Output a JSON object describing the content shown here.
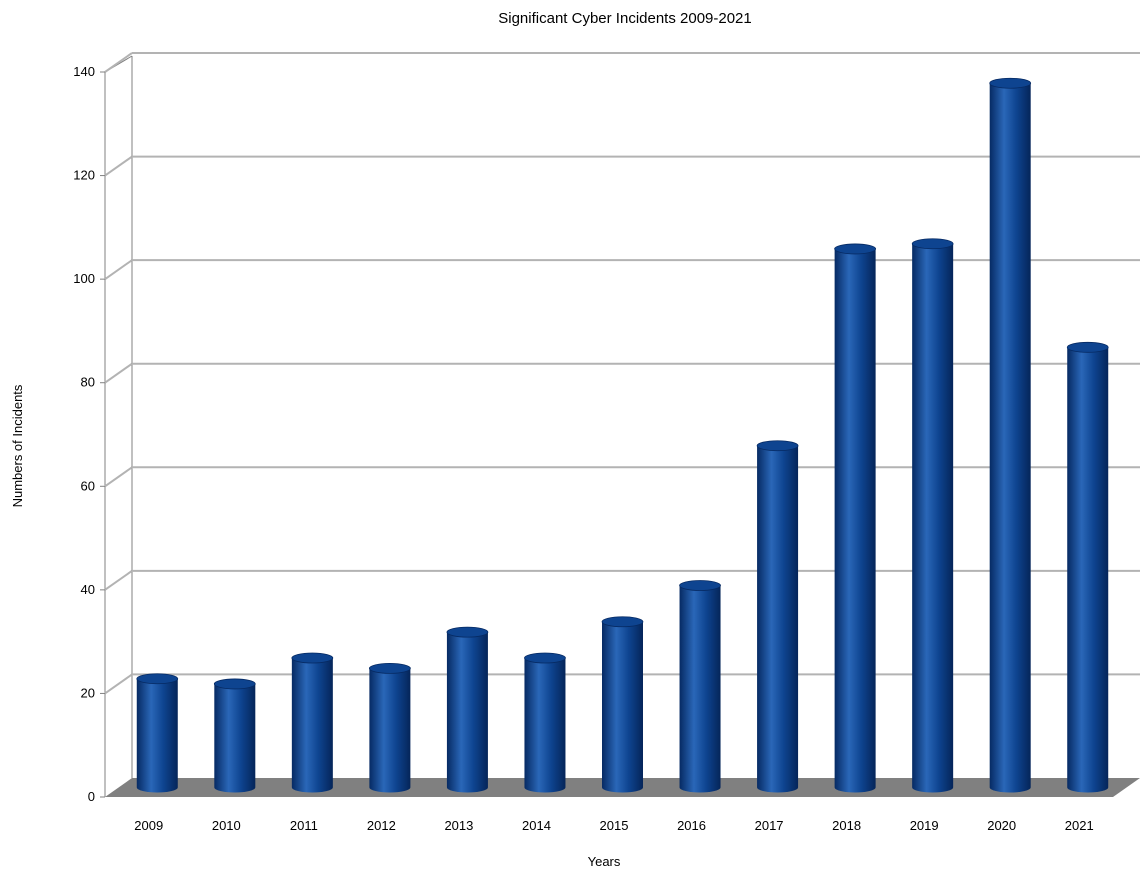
{
  "chart_data": {
    "type": "bar",
    "title": "Significant Cyber Incidents 2009-2021",
    "xlabel": "Years",
    "ylabel": "Numbers of Incidents",
    "categories": [
      "2009",
      "2010",
      "2011",
      "2012",
      "2013",
      "2014",
      "2015",
      "2016",
      "2017",
      "2018",
      "2019",
      "2020",
      "2021"
    ],
    "values": [
      21,
      20,
      25,
      23,
      30,
      25,
      32,
      39,
      66,
      104,
      105,
      136,
      85
    ],
    "ylim": [
      0,
      140
    ],
    "yticks": [
      0,
      20,
      40,
      60,
      80,
      100,
      120,
      140
    ],
    "grid": true,
    "style": "3d-cylinder",
    "colors": {
      "bar": "#0e4490",
      "bar_dark": "#062a63",
      "bar_light": "#2a67b8",
      "grid": "#b3b3b3",
      "floor": "#808080",
      "axis": "#808080"
    }
  }
}
